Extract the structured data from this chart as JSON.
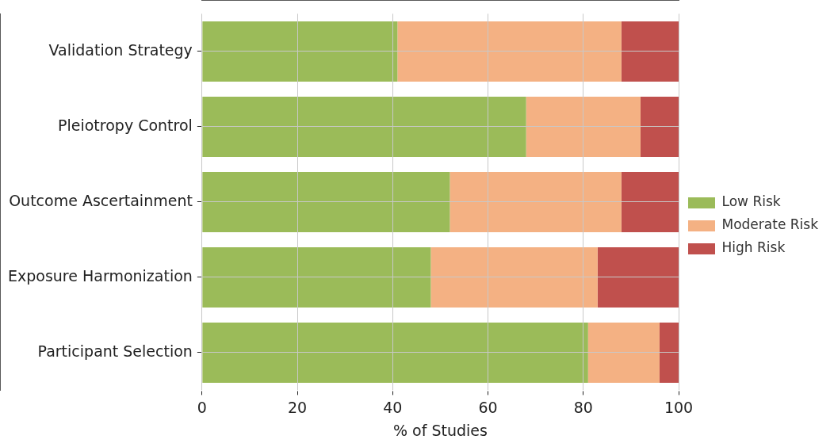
{
  "chart_data": {
    "type": "bar",
    "orientation": "horizontal",
    "stacked": true,
    "xlabel": "% of Studies",
    "categories": [
      "Validation Strategy",
      "Pleiotropy Control",
      "Outcome Ascertainment",
      "Exposure Harmonization",
      "Participant Selection"
    ],
    "series": [
      {
        "name": "Low Risk",
        "color": "#9bbb59",
        "values": [
          41,
          68,
          52,
          48,
          81
        ]
      },
      {
        "name": "Moderate Risk",
        "color": "#f4b183",
        "values": [
          47,
          24,
          36,
          35,
          15
        ]
      },
      {
        "name": "High Risk",
        "color": "#c0504d",
        "values": [
          12,
          8,
          12,
          17,
          4
        ]
      }
    ],
    "xlim": [
      0,
      100
    ],
    "xticks": [
      0,
      20,
      40,
      60,
      80,
      100
    ],
    "grid": true,
    "legend": "right"
  }
}
